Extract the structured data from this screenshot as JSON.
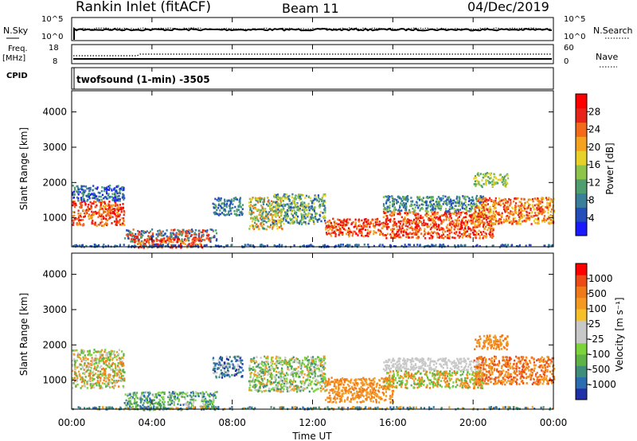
{
  "header": {
    "title": "Rankin Inlet (fitACF)",
    "beam": "Beam 11",
    "date": "04/Dec/2019"
  },
  "noise_panel": {
    "left_label": "N.Sky",
    "right_label": "N.Search",
    "left_ticks": [
      "10^5",
      "10^0"
    ],
    "right_ticks": [
      "10^5",
      "10^0"
    ]
  },
  "freq_panel": {
    "left_label_1": "Freq.",
    "left_label_2": "[MHz]",
    "right_label": "Nave",
    "left_ticks": [
      "18",
      "8"
    ],
    "right_ticks": [
      "60",
      "0"
    ]
  },
  "cpid": {
    "label": "CPID",
    "value": "twofsound (1-min) -3505"
  },
  "chart_data": [
    {
      "type": "heatmap",
      "title": "",
      "quantity": "Power",
      "xlabel": "Time UT",
      "ylabel": "Slant Range [km]",
      "x_ticks": [
        "00:00",
        "04:00",
        "08:00",
        "12:00",
        "16:00",
        "20:00",
        "00:00"
      ],
      "y_ticks": [
        "1000",
        "2000",
        "3000",
        "4000"
      ],
      "ylim": [
        180,
        4600
      ],
      "colorbar": {
        "label": "Power [dB]",
        "tick_labels": [
          "4",
          "8",
          "12",
          "16",
          "20",
          "24",
          "28"
        ],
        "colors": [
          "#1a1aff",
          "#224dbb",
          "#3a7f9a",
          "#4e9e6e",
          "#8ec44a",
          "#e8d22a",
          "#f5a21e",
          "#f36a1a",
          "#e8231a",
          "#ff0000"
        ]
      }
    },
    {
      "type": "heatmap",
      "title": "",
      "quantity": "Velocity",
      "xlabel": "Time UT",
      "ylabel": "Slant Range [km]",
      "x_ticks": [
        "00:00",
        "04:00",
        "08:00",
        "12:00",
        "16:00",
        "20:00",
        "00:00"
      ],
      "y_ticks": [
        "1000",
        "2000",
        "3000",
        "4000"
      ],
      "ylim": [
        180,
        4600
      ],
      "colorbar": {
        "label": "Velocity [m s⁻¹]",
        "tick_labels": [
          "1000",
          "500",
          "100",
          "25",
          "-25",
          "-100",
          "-500",
          "-1000"
        ],
        "colors": [
          "#1f2fa8",
          "#2a6db0",
          "#3f8e7a",
          "#5fb245",
          "#7cd33a",
          "#c8c8c8",
          "#c8c8c8",
          "#f6c02a",
          "#f59a20",
          "#f07a1a",
          "#ee4a18",
          "#ff0000"
        ]
      }
    }
  ]
}
